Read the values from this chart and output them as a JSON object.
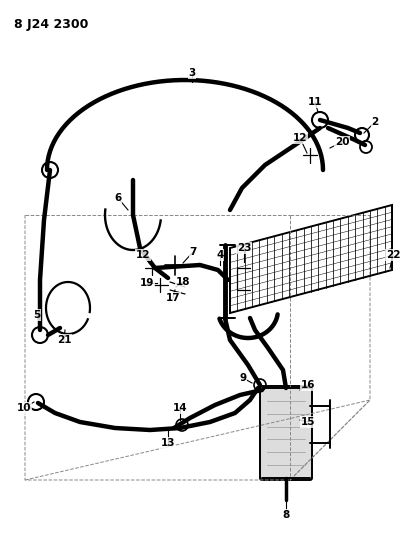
{
  "title": "8 J24 2300",
  "bg": "#ffffff",
  "fig_w": 4.06,
  "fig_h": 5.33,
  "dpi": 100,
  "lw_hose": 3.2,
  "lw_comp": 1.4,
  "lw_thin": 0.9,
  "lw_dash": 0.7,
  "label_fs": 7.5
}
